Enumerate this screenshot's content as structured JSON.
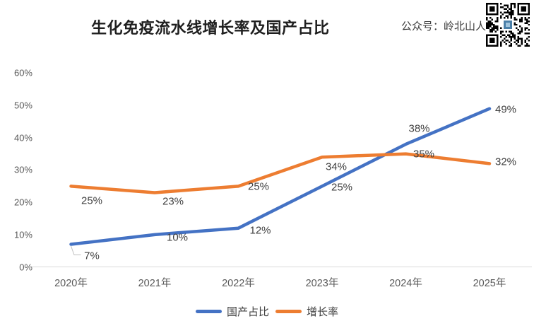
{
  "header": {
    "title": "生化免疫流水线增长率及国产占比",
    "account_label": "公众号：岭北山人",
    "qr_icon": "qr-code-icon"
  },
  "chart_data": {
    "type": "line",
    "title": "生化免疫流水线增长率及国产占比",
    "categories": [
      "2020年",
      "2021年",
      "2022年",
      "2023年",
      "2024年",
      "2025年"
    ],
    "series": [
      {
        "name": "国产占比",
        "color": "#4472C4",
        "values": [
          7,
          10,
          12,
          25,
          38,
          49
        ],
        "labels": [
          "7%",
          "10%",
          "12%",
          "25%",
          "38%",
          "49%"
        ]
      },
      {
        "name": "增长率",
        "color": "#ED7D31",
        "values": [
          25,
          23,
          25,
          34,
          35,
          32
        ],
        "labels": [
          "25%",
          "23%",
          "25%",
          "34%",
          "35%",
          "32%"
        ]
      }
    ],
    "y_axis": {
      "tick_labels": [
        "0%",
        "10%",
        "20%",
        "30%",
        "40%",
        "50%",
        "60%"
      ],
      "tick_values": [
        0,
        10,
        20,
        30,
        40,
        50,
        60
      ],
      "min": 0,
      "max": 60
    },
    "grid": false,
    "legend_position": "bottom",
    "first_point_has_leader_line": true
  }
}
